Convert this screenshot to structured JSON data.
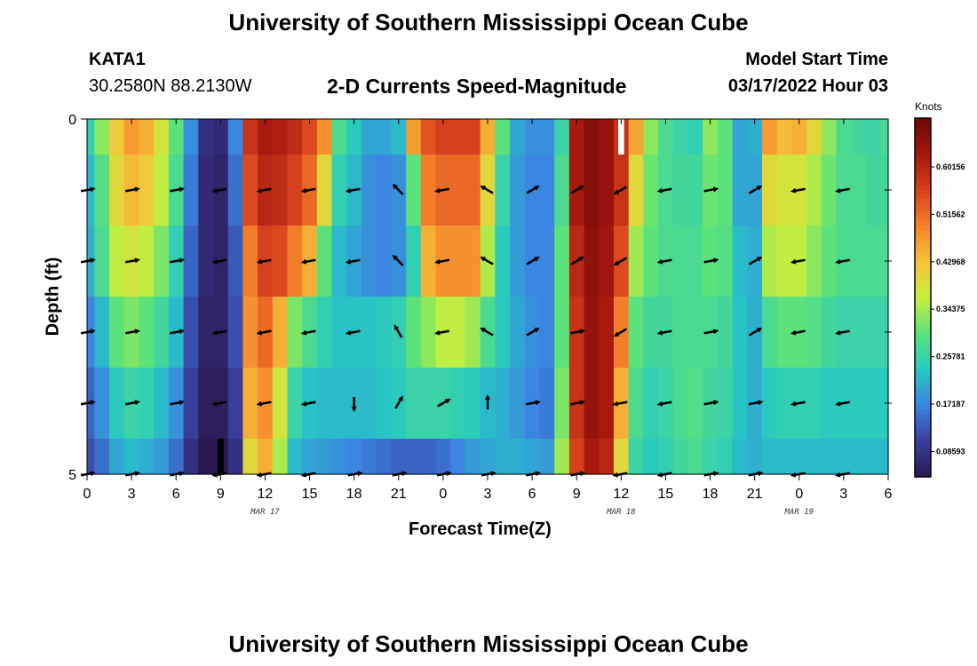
{
  "header": {
    "title": "University of Southern Mississippi Ocean Cube",
    "station": "KATA1",
    "coords": "30.2580N  88.2130W",
    "subtitle": "2-D Currents Speed-Magnitude",
    "model_start_label": "Model Start Time",
    "model_start_value": "03/17/2022 Hour 03"
  },
  "footer": {
    "title": "University of Southern Mississippi Ocean Cube"
  },
  "chart_data": {
    "type": "heatmap",
    "title": "2-D Currents Speed-Magnitude",
    "xlabel": "Forecast Time(Z)",
    "ylabel": "Depth (ft)",
    "x_ticks": [
      "0",
      "3",
      "6",
      "9",
      "12",
      "15",
      "18",
      "21",
      "0",
      "3",
      "6",
      "9",
      "12",
      "15",
      "18",
      "21",
      "0",
      "3",
      "6"
    ],
    "date_labels": [
      {
        "label": "MAR 17",
        "hour_index": 12
      },
      {
        "label": "MAR 18",
        "hour_index": 36
      },
      {
        "label": "MAR 19",
        "hour_index": 48
      }
    ],
    "x_range_hours": [
      0,
      54
    ],
    "y_ticks": [
      "0",
      "5"
    ],
    "y_range_ft": [
      0,
      5
    ],
    "colorbar": {
      "unit": "Knots",
      "ticks": [
        "0.60156",
        "0.51562",
        "0.42968",
        "0.34375",
        "0.25781",
        "0.17187",
        "0.08593"
      ],
      "tick_values": [
        0.60156,
        0.51562,
        0.42968,
        0.34375,
        0.25781,
        0.17187,
        0.08593
      ],
      "min": 0.04,
      "max": 0.69,
      "stops": [
        "#2b1850",
        "#3a3f9e",
        "#3a86e0",
        "#26c9c3",
        "#5ce27a",
        "#c7ee3c",
        "#f6c33a",
        "#f5822a",
        "#d6401c",
        "#a3170d",
        "#6b0906"
      ]
    },
    "time_hours": [
      0,
      1,
      2,
      3,
      4,
      5,
      6,
      7,
      8,
      9,
      10,
      11,
      12,
      13,
      14,
      15,
      16,
      17,
      18,
      19,
      20,
      21,
      22,
      23,
      24,
      25,
      26,
      27,
      28,
      29,
      30,
      31,
      32,
      33,
      34,
      35,
      36,
      37,
      38,
      39,
      40,
      41,
      42,
      43,
      44,
      45,
      46,
      47,
      48,
      49,
      50,
      51,
      52,
      53,
      54
    ],
    "depth_ft": [
      0,
      1,
      2,
      3,
      4,
      5
    ],
    "speed_knots_by_depth": [
      [
        0.25,
        0.33,
        0.42,
        0.47,
        0.45,
        0.38,
        0.3,
        0.18,
        0.08,
        0.07,
        0.17,
        0.58,
        0.62,
        0.61,
        0.59,
        0.55,
        0.48,
        0.28,
        0.24,
        0.2,
        0.2,
        0.22,
        0.47,
        0.54,
        0.56,
        0.56,
        0.56,
        0.45,
        0.3,
        0.2,
        0.18,
        0.18,
        0.26,
        0.62,
        0.66,
        0.64,
        0.58,
        0.46,
        0.33,
        0.28,
        0.26,
        0.25,
        0.33,
        0.3,
        0.2,
        0.21,
        0.47,
        0.44,
        0.45,
        0.4,
        0.33,
        0.28,
        0.27,
        0.26,
        0.28
      ],
      [
        0.22,
        0.29,
        0.4,
        0.44,
        0.42,
        0.36,
        0.28,
        0.16,
        0.07,
        0.06,
        0.15,
        0.55,
        0.6,
        0.59,
        0.56,
        0.52,
        0.4,
        0.25,
        0.22,
        0.18,
        0.17,
        0.18,
        0.3,
        0.5,
        0.52,
        0.52,
        0.52,
        0.4,
        0.26,
        0.19,
        0.17,
        0.17,
        0.28,
        0.62,
        0.66,
        0.64,
        0.58,
        0.4,
        0.31,
        0.28,
        0.27,
        0.27,
        0.31,
        0.3,
        0.2,
        0.2,
        0.4,
        0.38,
        0.38,
        0.35,
        0.31,
        0.28,
        0.28,
        0.27,
        0.27
      ],
      [
        0.21,
        0.28,
        0.36,
        0.38,
        0.36,
        0.32,
        0.25,
        0.14,
        0.07,
        0.06,
        0.13,
        0.5,
        0.56,
        0.55,
        0.5,
        0.45,
        0.3,
        0.22,
        0.2,
        0.18,
        0.17,
        0.18,
        0.25,
        0.45,
        0.48,
        0.48,
        0.48,
        0.35,
        0.24,
        0.19,
        0.17,
        0.17,
        0.3,
        0.6,
        0.65,
        0.63,
        0.55,
        0.34,
        0.3,
        0.28,
        0.28,
        0.28,
        0.3,
        0.29,
        0.22,
        0.21,
        0.35,
        0.36,
        0.36,
        0.33,
        0.3,
        0.28,
        0.28,
        0.28,
        0.28
      ],
      [
        0.17,
        0.22,
        0.3,
        0.32,
        0.3,
        0.27,
        0.22,
        0.12,
        0.06,
        0.06,
        0.12,
        0.48,
        0.52,
        0.45,
        0.32,
        0.28,
        0.25,
        0.23,
        0.23,
        0.23,
        0.24,
        0.25,
        0.3,
        0.33,
        0.36,
        0.36,
        0.34,
        0.28,
        0.24,
        0.2,
        0.18,
        0.17,
        0.3,
        0.58,
        0.64,
        0.62,
        0.5,
        0.3,
        0.27,
        0.27,
        0.28,
        0.28,
        0.28,
        0.27,
        0.23,
        0.21,
        0.28,
        0.3,
        0.3,
        0.29,
        0.27,
        0.26,
        0.26,
        0.26,
        0.26
      ],
      [
        0.14,
        0.18,
        0.24,
        0.26,
        0.25,
        0.22,
        0.18,
        0.1,
        0.05,
        0.05,
        0.1,
        0.45,
        0.48,
        0.38,
        0.26,
        0.23,
        0.22,
        0.22,
        0.22,
        0.22,
        0.23,
        0.24,
        0.26,
        0.26,
        0.26,
        0.25,
        0.24,
        0.22,
        0.21,
        0.19,
        0.17,
        0.16,
        0.32,
        0.58,
        0.64,
        0.62,
        0.45,
        0.28,
        0.25,
        0.26,
        0.28,
        0.29,
        0.27,
        0.26,
        0.23,
        0.21,
        0.24,
        0.25,
        0.25,
        0.25,
        0.24,
        0.24,
        0.24,
        0.24,
        0.24
      ],
      [
        0.12,
        0.15,
        0.2,
        0.22,
        0.21,
        0.19,
        0.15,
        0.08,
        0.04,
        0.04,
        0.08,
        0.4,
        0.45,
        0.35,
        0.22,
        0.2,
        0.19,
        0.18,
        0.17,
        0.16,
        0.15,
        0.14,
        0.14,
        0.14,
        0.15,
        0.17,
        0.19,
        0.2,
        0.21,
        0.21,
        0.2,
        0.19,
        0.34,
        0.56,
        0.62,
        0.6,
        0.4,
        0.26,
        0.24,
        0.25,
        0.27,
        0.28,
        0.26,
        0.25,
        0.22,
        0.21,
        0.22,
        0.22,
        0.22,
        0.22,
        0.22,
        0.22,
        0.22,
        0.22,
        0.22
      ]
    ],
    "arrow_times_hours": [
      0,
      3,
      6,
      9,
      12,
      15,
      18,
      21,
      24,
      27,
      30,
      33,
      36,
      39,
      42,
      45,
      48,
      51
    ],
    "arrow_direction_deg_by_depth": {
      "1": [
        80,
        80,
        80,
        260,
        260,
        260,
        260,
        315,
        260,
        300,
        60,
        60,
        240,
        260,
        80,
        60,
        260,
        260
      ],
      "2": [
        80,
        80,
        80,
        260,
        260,
        260,
        260,
        315,
        260,
        300,
        60,
        60,
        240,
        260,
        80,
        60,
        260,
        260
      ],
      "3": [
        80,
        80,
        80,
        260,
        260,
        260,
        260,
        330,
        260,
        300,
        60,
        80,
        240,
        260,
        80,
        60,
        260,
        260
      ],
      "4": [
        80,
        80,
        80,
        260,
        260,
        260,
        180,
        30,
        60,
        0,
        80,
        80,
        260,
        260,
        80,
        80,
        260,
        260
      ],
      "5": [
        80,
        80,
        80,
        260,
        260,
        260,
        80,
        80,
        80,
        80,
        80,
        80,
        260,
        260,
        80,
        80,
        260,
        260
      ]
    }
  }
}
